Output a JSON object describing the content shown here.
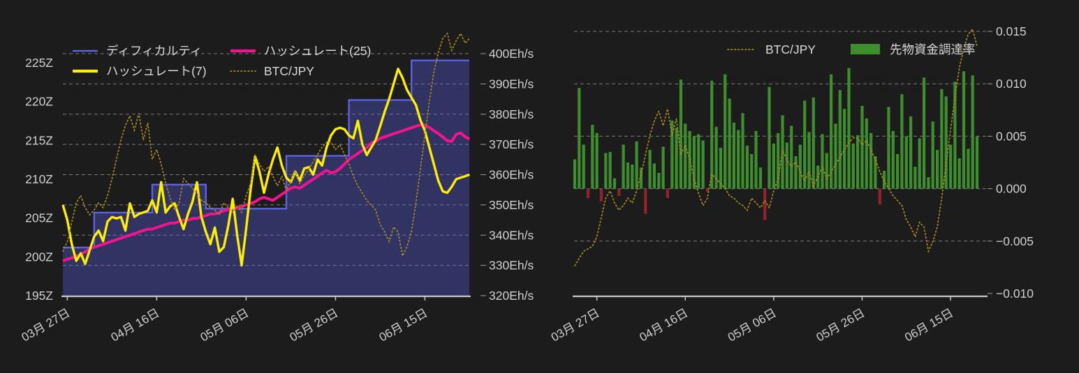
{
  "page": {
    "background": "#1c1c1c",
    "text_color": "#cfcfcf",
    "grid_color": "#c9c9c9",
    "axis_color": "#c9c9c9"
  },
  "chart_data": [
    {
      "id": "difficulty-hashrate",
      "type": "line",
      "title": "",
      "legend": [
        {
          "label": "ディフィカルティ",
          "series": "difficulty",
          "color": "#5b62e3",
          "sample": "line-thin"
        },
        {
          "label": "ハッシュレート(25)",
          "series": "hashrate_25",
          "color": "#f5128f",
          "sample": "line-thick"
        },
        {
          "label": "ハッシュレート(7)",
          "series": "hashrate_7",
          "color": "#ffee00",
          "sample": "line-thick"
        },
        {
          "label": "BTC/JPY",
          "series": "btc_jpy",
          "color": "#a98a1e",
          "sample": "dotted"
        }
      ],
      "x_axis": {
        "tick_labels": [
          "03月 27日",
          "04月 16日",
          "05月 06日",
          "05月 26日",
          "06月 15日"
        ],
        "tick_days": [
          1,
          21,
          41,
          61,
          81
        ],
        "n_days": 92
      },
      "y_axis_left": {
        "unit": "Z",
        "tick_labels": [
          "225Z",
          "220Z",
          "215Z",
          "210Z",
          "205Z",
          "200Z",
          "195Z"
        ],
        "tick_values": [
          225,
          220,
          215,
          210,
          205,
          200,
          195
        ],
        "min": 195,
        "max": 225
      },
      "y_axis_right": {
        "unit": "Eh/s",
        "tick_labels": [
          "400Eh/s",
          "390Eh/s",
          "380Eh/s",
          "370Eh/s",
          "360Eh/s",
          "350Eh/s",
          "340Eh/s",
          "330Eh/s",
          "320Eh/s"
        ],
        "tick_values": [
          400,
          390,
          380,
          370,
          360,
          350,
          340,
          330,
          320
        ],
        "min": 320,
        "max": 400
      },
      "grid": "dashed",
      "series": {
        "difficulty_steps": [
          {
            "value": 201.2,
            "from_day": 0,
            "to_day": 6
          },
          {
            "value": 205.7,
            "from_day": 7,
            "to_day": 19
          },
          {
            "value": 209.3,
            "from_day": 20,
            "to_day": 31
          },
          {
            "value": 206.2,
            "from_day": 32,
            "to_day": 49
          },
          {
            "value": 213.0,
            "from_day": 50,
            "to_day": 63
          },
          {
            "value": 220.2,
            "from_day": 64,
            "to_day": 77
          },
          {
            "value": 225.3,
            "from_day": 78,
            "to_day": 91
          }
        ],
        "hashrate_7": [
          350,
          345,
          337,
          331.5,
          334,
          330.5,
          335,
          339.5,
          341.5,
          338,
          344.5,
          346,
          345.5,
          346,
          341.5,
          350.5,
          346,
          347,
          347.5,
          348,
          351.5,
          347.5,
          357.5,
          347.5,
          349.5,
          350.5,
          346,
          342,
          347,
          351,
          357.5,
          346,
          341,
          337,
          342.5,
          334.5,
          336,
          343,
          352,
          340,
          330,
          342,
          355,
          366,
          361,
          354,
          360,
          365,
          369,
          363,
          359,
          357.5,
          361,
          358,
          362,
          362.5,
          360,
          365,
          363,
          369,
          373,
          375,
          375.5,
          375,
          373,
          372,
          377.8,
          370,
          366.5,
          369,
          371.5,
          376,
          380.8,
          385,
          390,
          395,
          392,
          388,
          385.5,
          383,
          378,
          374.5,
          369,
          363.5,
          358,
          354.5,
          354,
          356,
          358.5,
          359,
          359.5,
          360
        ],
        "hashrate_25": [
          331.5,
          332,
          332.5,
          333,
          333.5,
          334.5,
          335.5,
          336,
          336.5,
          337,
          337.5,
          338,
          338.5,
          339,
          339.5,
          340,
          340.5,
          341,
          341.5,
          342,
          342,
          342.5,
          343,
          343.5,
          344,
          344,
          344.5,
          345,
          345,
          345.5,
          345.5,
          346,
          346.5,
          347,
          347,
          347.5,
          348,
          348.5,
          349,
          349,
          349.5,
          350,
          350.5,
          351,
          352,
          352.5,
          352,
          351.5,
          352.5,
          353.5,
          354.5,
          355.5,
          356,
          355.5,
          356.5,
          357.5,
          358.5,
          359.5,
          360.5,
          361.5,
          360.5,
          361,
          362,
          363.5,
          365,
          366,
          367,
          368,
          369,
          370.5,
          371,
          372,
          372.5,
          373,
          373.5,
          374,
          374.5,
          375,
          375.5,
          376,
          376.5,
          376.3,
          375.6,
          374.5,
          373.6,
          372.5,
          371.2,
          371,
          373.3,
          373.8,
          372.5,
          371.8
        ],
        "btc_jpy_norm": [
          0.1,
          0.14,
          0.22,
          0.3,
          0.33,
          0.28,
          0.25,
          0.27,
          0.3,
          0.28,
          0.33,
          0.4,
          0.48,
          0.56,
          0.62,
          0.66,
          0.6,
          0.67,
          0.56,
          0.63,
          0.48,
          0.52,
          0.46,
          0.38,
          0.32,
          0.27,
          0.3,
          0.4,
          0.38,
          0.36,
          0.34,
          0.31,
          0.3,
          0.28,
          0.27,
          0.25,
          0.3,
          0.28,
          0.26,
          0.29,
          0.26,
          0.33,
          0.38,
          0.5,
          0.46,
          0.43,
          0.45,
          0.41,
          0.37,
          0.41,
          0.35,
          0.39,
          0.43,
          0.38,
          0.41,
          0.44,
          0.47,
          0.5,
          0.53,
          0.55,
          0.55,
          0.52,
          0.54,
          0.5,
          0.46,
          0.41,
          0.37,
          0.34,
          0.31,
          0.29,
          0.27,
          0.21,
          0.18,
          0.14,
          0.2,
          0.18,
          0.08,
          0.12,
          0.18,
          0.3,
          0.44,
          0.58,
          0.72,
          0.84,
          0.92,
          0.98,
          1.0,
          0.93,
          0.97,
          1.0,
          0.96,
          0.98
        ]
      }
    },
    {
      "id": "funding-rate",
      "type": "bar",
      "title": "",
      "legend": [
        {
          "label": "BTC/JPY",
          "series": "btc_jpy",
          "color": "#a98a1e",
          "sample": "dotted"
        },
        {
          "label": "先物資金調達率",
          "series": "funding_rate",
          "color": "#3e8e2e",
          "sample": "swatch"
        }
      ],
      "x_axis": {
        "tick_labels": [
          "03月 27日",
          "04月 16日",
          "05月 06日",
          "05月 26日",
          "06月 15日"
        ],
        "tick_days": [
          5,
          25,
          45,
          65,
          85
        ],
        "n_days": 92
      },
      "y_axis_right": {
        "tick_labels": [
          "0.015",
          "0.010",
          "0.005",
          "0.000",
          "−0.005",
          "−0.010"
        ],
        "tick_values": [
          0.015,
          0.01,
          0.005,
          0.0,
          -0.005,
          -0.01
        ],
        "min": -0.01,
        "max": 0.015
      },
      "grid": "dashed",
      "series": {
        "funding_rate": [
          0.0028,
          0.0096,
          0.0042,
          -0.0009,
          0.0061,
          0.0053,
          -0.0012,
          0.0034,
          0.0035,
          0.001,
          -0.0007,
          0.0042,
          0.0025,
          0.0023,
          0.0045,
          0.002,
          -0.0024,
          0.0037,
          0.0024,
          0.0015,
          0.004,
          -0.0009,
          0.0065,
          0.0058,
          0.0104,
          0.0062,
          0.0055,
          0.005,
          0.0052,
          0.0046,
          -0.0003,
          0.0103,
          0.0059,
          0.0039,
          0.0109,
          0.0086,
          0.0063,
          0.0056,
          0.0072,
          0.0041,
          0.0033,
          0.0055,
          0.002,
          -0.003,
          0.0097,
          0.0043,
          0.0053,
          0.007,
          0.0044,
          0.006,
          0.0031,
          0.0042,
          0.0084,
          0.0054,
          0.0087,
          0.0022,
          0.0052,
          0.0034,
          0.0109,
          0.0062,
          0.0094,
          0.0076,
          0.0115,
          0.0043,
          0.0051,
          0.0079,
          0.0067,
          0.0053,
          0.0031,
          -0.0015,
          0.0017,
          0.0078,
          0.0055,
          0.0033,
          0.009,
          0.005,
          0.0069,
          0.0021,
          0.0048,
          0.0106,
          0.0011,
          0.0064,
          0.0037,
          0.0095,
          0.0088,
          0.0042,
          0.0102,
          0.0029,
          0.0112,
          0.0038,
          0.0108,
          0.005
        ],
        "funding_positive_color": "#3e8e2e",
        "funding_negative_color": "#93222e",
        "btc_jpy_norm": [
          0.02,
          0.05,
          0.08,
          0.09,
          0.1,
          0.14,
          0.22,
          0.3,
          0.33,
          0.28,
          0.25,
          0.27,
          0.3,
          0.28,
          0.33,
          0.4,
          0.48,
          0.56,
          0.62,
          0.66,
          0.6,
          0.67,
          0.56,
          0.63,
          0.48,
          0.52,
          0.46,
          0.38,
          0.32,
          0.27,
          0.3,
          0.4,
          0.38,
          0.36,
          0.34,
          0.31,
          0.3,
          0.28,
          0.27,
          0.25,
          0.3,
          0.28,
          0.26,
          0.29,
          0.26,
          0.33,
          0.38,
          0.5,
          0.46,
          0.43,
          0.45,
          0.41,
          0.37,
          0.41,
          0.35,
          0.39,
          0.43,
          0.38,
          0.41,
          0.44,
          0.47,
          0.5,
          0.53,
          0.55,
          0.55,
          0.52,
          0.54,
          0.5,
          0.46,
          0.41,
          0.37,
          0.34,
          0.31,
          0.29,
          0.27,
          0.21,
          0.18,
          0.14,
          0.2,
          0.18,
          0.08,
          0.12,
          0.18,
          0.3,
          0.44,
          0.58,
          0.72,
          0.84,
          0.92,
          0.98,
          1.0,
          0.93
        ]
      }
    }
  ]
}
